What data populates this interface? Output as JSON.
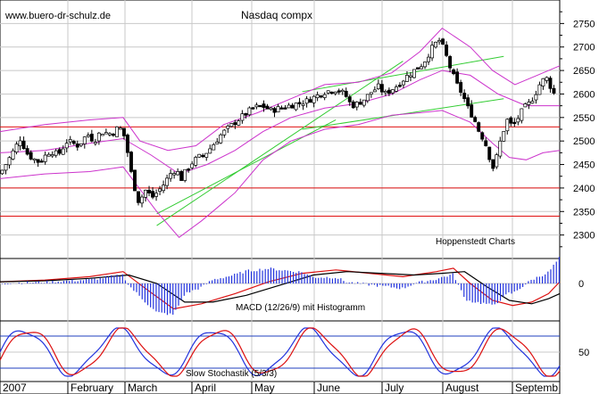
{
  "header": {
    "watermark": "www.buero-dr-schulz.de",
    "title": "Nasdaq compx",
    "credit": "Hoppenstedt Charts"
  },
  "chart_data": [
    {
      "type": "candlestick",
      "title": "Nasdaq compx",
      "ylim": [
        2250,
        2800
      ],
      "yticks": [
        2300,
        2350,
        2400,
        2450,
        2500,
        2550,
        2600,
        2650,
        2700,
        2750
      ],
      "grid": true,
      "months": [
        "2007",
        "February",
        "March",
        "April",
        "May",
        "June",
        "July",
        "August",
        "Septemb"
      ],
      "close_path": [
        [
          0,
          2430
        ],
        [
          10,
          2470
        ],
        [
          18,
          2505
        ],
        [
          25,
          2470
        ],
        [
          35,
          2455
        ],
        [
          45,
          2480
        ],
        [
          52,
          2470
        ],
        [
          60,
          2500
        ],
        [
          70,
          2490
        ],
        [
          78,
          2515
        ],
        [
          84,
          2500
        ],
        [
          90,
          2520
        ],
        [
          100,
          2515
        ],
        [
          106,
          2530
        ],
        [
          110,
          2520
        ],
        [
          115,
          2465
        ],
        [
          118,
          2420
        ],
        [
          124,
          2370
        ],
        [
          130,
          2395
        ],
        [
          136,
          2380
        ],
        [
          142,
          2395
        ],
        [
          147,
          2410
        ],
        [
          152,
          2430
        ],
        [
          157,
          2440
        ],
        [
          162,
          2420
        ],
        [
          167,
          2440
        ],
        [
          172,
          2455
        ],
        [
          177,
          2465
        ],
        [
          182,
          2470
        ],
        [
          188,
          2485
        ],
        [
          193,
          2500
        ],
        [
          198,
          2515
        ],
        [
          203,
          2525
        ],
        [
          210,
          2540
        ],
        [
          218,
          2555
        ],
        [
          226,
          2570
        ],
        [
          234,
          2575
        ],
        [
          242,
          2565
        ],
        [
          250,
          2570
        ],
        [
          258,
          2575
        ],
        [
          266,
          2580
        ],
        [
          274,
          2585
        ],
        [
          282,
          2595
        ],
        [
          290,
          2605
        ],
        [
          300,
          2610
        ],
        [
          308,
          2600
        ],
        [
          314,
          2575
        ],
        [
          320,
          2580
        ],
        [
          326,
          2590
        ],
        [
          332,
          2605
        ],
        [
          338,
          2615
        ],
        [
          344,
          2600
        ],
        [
          350,
          2610
        ],
        [
          356,
          2620
        ],
        [
          362,
          2635
        ],
        [
          370,
          2650
        ],
        [
          378,
          2665
        ],
        [
          384,
          2690
        ],
        [
          388,
          2705
        ],
        [
          393,
          2715
        ],
        [
          398,
          2685
        ],
        [
          403,
          2650
        ],
        [
          408,
          2620
        ],
        [
          413,
          2600
        ],
        [
          418,
          2570
        ],
        [
          423,
          2550
        ],
        [
          428,
          2520
        ],
        [
          433,
          2500
        ],
        [
          438,
          2460
        ],
        [
          441,
          2440
        ],
        [
          444,
          2470
        ],
        [
          448,
          2510
        ],
        [
          453,
          2545
        ],
        [
          458,
          2530
        ],
        [
          463,
          2550
        ],
        [
          468,
          2570
        ],
        [
          473,
          2580
        ],
        [
          478,
          2600
        ],
        [
          483,
          2625
        ],
        [
          488,
          2635
        ],
        [
          492,
          2615
        ],
        [
          496,
          2595
        ]
      ],
      "bollinger_upper": [
        [
          0,
          2520
        ],
        [
          40,
          2535
        ],
        [
          80,
          2545
        ],
        [
          110,
          2550
        ],
        [
          125,
          2500
        ],
        [
          150,
          2480
        ],
        [
          175,
          2490
        ],
        [
          200,
          2535
        ],
        [
          230,
          2560
        ],
        [
          260,
          2590
        ],
        [
          290,
          2620
        ],
        [
          320,
          2625
        ],
        [
          350,
          2645
        ],
        [
          375,
          2690
        ],
        [
          395,
          2740
        ],
        [
          420,
          2700
        ],
        [
          440,
          2650
        ],
        [
          460,
          2620
        ],
        [
          480,
          2640
        ],
        [
          500,
          2660
        ]
      ],
      "bollinger_middle": [
        [
          0,
          2475
        ],
        [
          40,
          2480
        ],
        [
          80,
          2495
        ],
        [
          110,
          2505
        ],
        [
          135,
          2470
        ],
        [
          160,
          2430
        ],
        [
          185,
          2450
        ],
        [
          210,
          2480
        ],
        [
          235,
          2520
        ],
        [
          260,
          2550
        ],
        [
          290,
          2570
        ],
        [
          320,
          2580
        ],
        [
          350,
          2600
        ],
        [
          375,
          2630
        ],
        [
          395,
          2650
        ],
        [
          420,
          2640
        ],
        [
          445,
          2600
        ],
        [
          470,
          2575
        ],
        [
          500,
          2575
        ]
      ],
      "bollinger_lower": [
        [
          0,
          2420
        ],
        [
          40,
          2430
        ],
        [
          80,
          2435
        ],
        [
          110,
          2445
        ],
        [
          140,
          2350
        ],
        [
          160,
          2295
        ],
        [
          180,
          2330
        ],
        [
          210,
          2390
        ],
        [
          235,
          2460
        ],
        [
          260,
          2500
        ],
        [
          290,
          2525
        ],
        [
          320,
          2535
        ],
        [
          350,
          2555
        ],
        [
          375,
          2560
        ],
        [
          395,
          2565
        ],
        [
          420,
          2540
        ],
        [
          440,
          2495
        ],
        [
          455,
          2465
        ],
        [
          470,
          2460
        ],
        [
          485,
          2475
        ],
        [
          500,
          2480
        ]
      ],
      "support_lines": [
        2530,
        2400,
        2340
      ],
      "trend_lines": [
        [
          [
            140,
            2320
          ],
          [
            360,
            2670
          ]
        ],
        [
          [
            140,
            2345
          ],
          [
            300,
            2545
          ]
        ],
        [
          [
            270,
            2605
          ],
          [
            450,
            2680
          ]
        ],
        [
          [
            270,
            2525
          ],
          [
            450,
            2590
          ]
        ]
      ]
    },
    {
      "type": "line+histogram",
      "title": "MACD (12/26/9) mit Histogramm",
      "yticks": [
        0
      ],
      "series": [
        {
          "macd": [
            [
              0,
              0.5
            ],
            [
              40,
              1.0
            ],
            [
              80,
              2.0
            ],
            [
              110,
              3.5
            ],
            [
              130,
              -1.5
            ],
            [
              155,
              -7.5
            ],
            [
              180,
              -6.0
            ],
            [
              210,
              -3.0
            ],
            [
              240,
              0.5
            ],
            [
              270,
              3.0
            ],
            [
              300,
              4.0
            ],
            [
              330,
              3.0
            ],
            [
              360,
              2.0
            ],
            [
              390,
              3.5
            ],
            [
              405,
              4.5
            ],
            [
              420,
              0.0
            ],
            [
              440,
              -5.0
            ],
            [
              458,
              -6.5
            ],
            [
              475,
              -5.5
            ],
            [
              490,
              -3.0
            ],
            [
              500,
              0.5
            ]
          ]
        },
        {
          "signal": [
            [
              0,
              0.5
            ],
            [
              40,
              0.8
            ],
            [
              80,
              1.5
            ],
            [
              115,
              2.5
            ],
            [
              140,
              0.0
            ],
            [
              165,
              -5.5
            ],
            [
              190,
              -5.5
            ],
            [
              220,
              -3.5
            ],
            [
              250,
              -0.5
            ],
            [
              280,
              2.5
            ],
            [
              310,
              3.5
            ],
            [
              340,
              3.0
            ],
            [
              370,
              2.5
            ],
            [
              395,
              3.0
            ],
            [
              415,
              3.5
            ],
            [
              435,
              -1.0
            ],
            [
              455,
              -5.0
            ],
            [
              475,
              -6.0
            ],
            [
              490,
              -4.5
            ],
            [
              500,
              -3.0
            ]
          ]
        }
      ]
    },
    {
      "type": "line",
      "title": "Slow Stochastik (5/3/3)",
      "yticks": [
        50
      ],
      "reference_lines": [
        80,
        20
      ],
      "series": [
        {
          "percentK": "oscillating"
        },
        {
          "percentD": "oscillating"
        }
      ]
    }
  ]
}
